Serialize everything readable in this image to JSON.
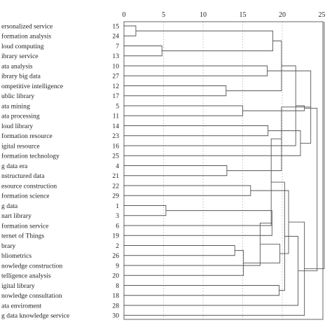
{
  "chart_data": {
    "type": "dendrogram",
    "title": "",
    "xlabel": "",
    "ylabel": "",
    "xlim": [
      0,
      25
    ],
    "xticks": [
      0,
      5,
      10,
      15,
      20,
      25
    ],
    "grid": true,
    "leaves": [
      {
        "label": "ersonalized service",
        "id": "15"
      },
      {
        "label": "formation analysis",
        "id": "24"
      },
      {
        "label": "loud computing",
        "id": "7"
      },
      {
        "label": "ibrary service",
        "id": "13"
      },
      {
        "label": "ata analysis",
        "id": "10"
      },
      {
        "label": "ibrary big data",
        "id": "27"
      },
      {
        "label": "ompetitive intelligence",
        "id": "12"
      },
      {
        "label": "ublic library",
        "id": "17"
      },
      {
        "label": "ata mining",
        "id": "5"
      },
      {
        "label": "ata processing",
        "id": "11"
      },
      {
        "label": "loud library",
        "id": "14"
      },
      {
        "label": "formation resource",
        "id": "23"
      },
      {
        "label": "igital resource",
        "id": "16"
      },
      {
        "label": "formation technology",
        "id": "25"
      },
      {
        "label": "g data era",
        "id": "4"
      },
      {
        "label": "nstructured data",
        "id": "21"
      },
      {
        "label": "esource construction",
        "id": "22"
      },
      {
        "label": "formation science",
        "id": "29"
      },
      {
        "label": "g data",
        "id": "1"
      },
      {
        "label": "nart library",
        "id": "3"
      },
      {
        "label": "formation service",
        "id": "6"
      },
      {
        "label": "ternet of Things",
        "id": "19"
      },
      {
        "label": "brary",
        "id": "2"
      },
      {
        "label": "bliometrics",
        "id": "26"
      },
      {
        "label": "nowledge construction",
        "id": "9"
      },
      {
        "label": "telligence analysis",
        "id": "20"
      },
      {
        "label": "igital library",
        "id": "8"
      },
      {
        "label": "nowledge consultation",
        "id": "18"
      },
      {
        "label": "ata enviroment",
        "id": "28"
      },
      {
        "label": "g data knowledge service",
        "id": "30"
      }
    ],
    "merges": [
      {
        "a": 0,
        "b": 1,
        "height": 1.5
      },
      {
        "a": 2,
        "b": 3,
        "height": 4.8
      },
      {
        "a": 4,
        "b": 5,
        "height": 18.1
      },
      {
        "a": "m1",
        "b": "m2",
        "height": 18.8
      },
      {
        "a": 6,
        "b": 7,
        "height": 12.9
      },
      {
        "a": 8,
        "b": 9,
        "height": 15.0
      },
      {
        "a": "m4",
        "b": "m5",
        "height": 19.9
      },
      {
        "a": 10,
        "b": 11,
        "height": 18.2
      },
      {
        "a": "m7",
        "b": 12,
        "height": 21.7
      },
      {
        "a": "m8",
        "b": 13,
        "height": 22.3
      },
      {
        "a": "m6",
        "b": "m9",
        "height": 22.8
      },
      {
        "a": "m3",
        "b": "m10",
        "height": 23.6
      },
      {
        "a": 14,
        "b": 15,
        "height": 13.0
      },
      {
        "a": 16,
        "b": 17,
        "height": 16.0
      },
      {
        "a": "m12",
        "b": "m13",
        "height": 19.9
      },
      {
        "a": 18,
        "b": 19,
        "height": 5.3
      },
      {
        "a": "m15",
        "b": 20,
        "height": 18.6
      },
      {
        "a": "m16",
        "b": 21,
        "height": 18.7
      },
      {
        "a": 22,
        "b": 23,
        "height": 14.0
      },
      {
        "a": "m18",
        "b": 24,
        "height": 17.2
      },
      {
        "a": 25,
        "b": "m19",
        "height": 15.1
      },
      {
        "a": 26,
        "b": 27,
        "height": 19.6
      },
      {
        "a": "m20",
        "b": "m21",
        "height": 19.7
      },
      {
        "a": "m17",
        "b": "m22",
        "height": 20.3
      },
      {
        "a": "m14",
        "b": "m23",
        "height": 20.8
      },
      {
        "a": "m24",
        "b": 28,
        "height": 22.0
      },
      {
        "a": "m25",
        "b": 29,
        "height": 22.8
      },
      {
        "a": "m11",
        "b": "m26",
        "height": 24.4
      },
      {
        "a": "m27",
        "b": "root_end",
        "height": 25.3
      }
    ]
  }
}
